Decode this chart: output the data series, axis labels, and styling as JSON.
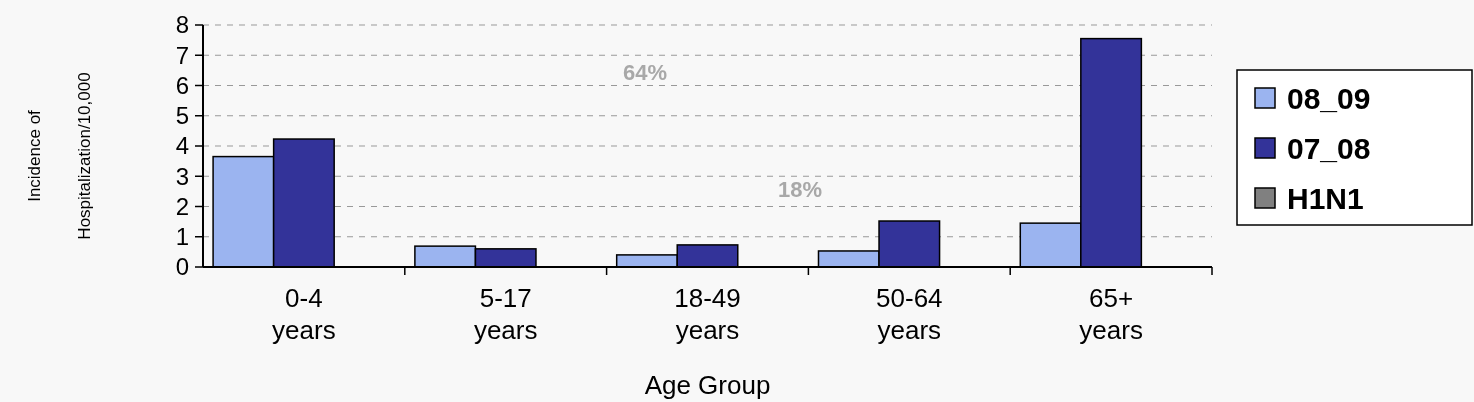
{
  "chart_data": {
    "type": "bar",
    "xlabel": "Age Group",
    "ylabel": "Incidence of Hospitalization/10,000",
    "categories": [
      "0-4 years",
      "5-17 years",
      "18-49 years",
      "50-64 years",
      "65+ years"
    ],
    "series": [
      {
        "name": "08_09",
        "color": "#9bb4f0",
        "values": [
          3.65,
          0.69,
          0.4,
          0.53,
          1.45
        ]
      },
      {
        "name": "07_08",
        "color": "#333399",
        "values": [
          4.23,
          0.6,
          0.73,
          1.52,
          7.55
        ]
      },
      {
        "name": "H1N1",
        "color": "#808080",
        "values": [
          null,
          null,
          null,
          null,
          null
        ]
      }
    ],
    "ylim": [
      0,
      8
    ],
    "yticks": [
      0,
      1,
      2,
      3,
      4,
      5,
      6,
      7,
      8
    ],
    "grid": "y",
    "legend": "right",
    "annotations": [
      "64%",
      "18%"
    ]
  }
}
